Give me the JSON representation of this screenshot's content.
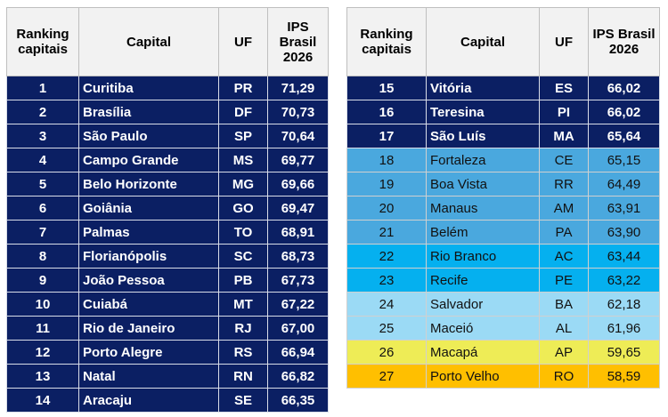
{
  "tables": [
    {
      "header": [
        "Ranking capitais",
        "Capital",
        "UF",
        "IPS Brasil 2026"
      ],
      "rows": [
        [
          "1",
          "Curitiba",
          "PR",
          "71,29"
        ],
        [
          "2",
          "Brasília",
          "DF",
          "70,73"
        ],
        [
          "3",
          "São Paulo",
          "SP",
          "70,64"
        ],
        [
          "4",
          "Campo Grande",
          "MS",
          "69,77"
        ],
        [
          "5",
          "Belo Horizonte",
          "MG",
          "69,66"
        ],
        [
          "6",
          "Goiânia",
          "GO",
          "69,47"
        ],
        [
          "7",
          "Palmas",
          "TO",
          "68,91"
        ],
        [
          "8",
          "Florianópolis",
          "SC",
          "68,73"
        ],
        [
          "9",
          "João Pessoa",
          "PB",
          "67,73"
        ],
        [
          "10",
          "Cuiabá",
          "MT",
          "67,22"
        ],
        [
          "11",
          "Rio de Janeiro",
          "RJ",
          "67,00"
        ],
        [
          "12",
          "Porto Alegre",
          "RS",
          "66,94"
        ],
        [
          "13",
          "Natal",
          "RN",
          "66,82"
        ],
        [
          "14",
          "Aracaju",
          "SE",
          "66,35"
        ]
      ]
    },
    {
      "header": [
        "Ranking capitais",
        "Capital",
        "UF",
        "IPS Brasil 2026"
      ],
      "rows": [
        [
          "15",
          "Vitória",
          "ES",
          "66,02"
        ],
        [
          "16",
          "Teresina",
          "PI",
          "66,02"
        ],
        [
          "17",
          "São Luís",
          "MA",
          "65,64"
        ],
        [
          "18",
          "Fortaleza",
          "CE",
          "65,15"
        ],
        [
          "19",
          "Boa Vista",
          "RR",
          "64,49"
        ],
        [
          "20",
          "Manaus",
          "AM",
          "63,91"
        ],
        [
          "21",
          "Belém",
          "PA",
          "63,90"
        ],
        [
          "22",
          "Rio Branco",
          "AC",
          "63,44"
        ],
        [
          "23",
          "Recife",
          "PE",
          "63,22"
        ],
        [
          "24",
          "Salvador",
          "BA",
          "62,18"
        ],
        [
          "25",
          "Maceió",
          "AL",
          "61,96"
        ],
        [
          "26",
          "Macapá",
          "AP",
          "59,65"
        ],
        [
          "27",
          "Porto Velho",
          "RO",
          "58,59"
        ]
      ]
    }
  ]
}
